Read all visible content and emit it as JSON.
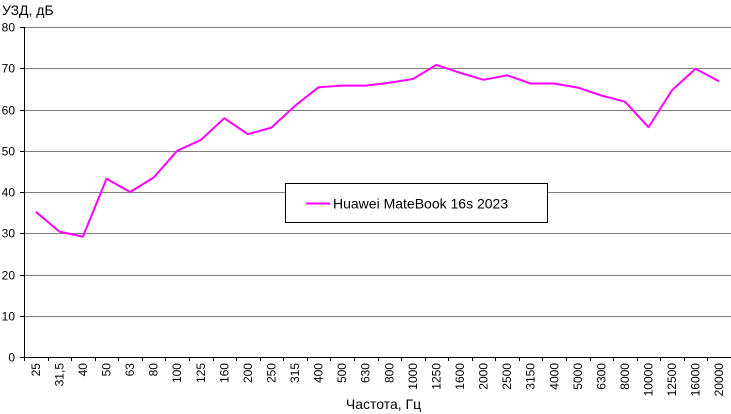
{
  "chart_data": {
    "type": "line",
    "title": "",
    "xlabel": "Частота, Гц",
    "ylabel": "УЗД, дБ",
    "categories": [
      "25",
      "31,5",
      "40",
      "50",
      "63",
      "80",
      "100",
      "125",
      "160",
      "200",
      "250",
      "315",
      "400",
      "500",
      "630",
      "800",
      "1000",
      "1250",
      "1600",
      "2000",
      "2500",
      "3150",
      "4000",
      "5000",
      "6300",
      "8000",
      "10000",
      "12500",
      "16000",
      "20000"
    ],
    "ylim": [
      0,
      80
    ],
    "yticks": [
      0,
      10,
      20,
      30,
      40,
      50,
      60,
      70,
      80
    ],
    "grid": true,
    "legend_position": "center",
    "series": [
      {
        "name": "Huawei MateBook 16s 2023",
        "color": "#ff00ff",
        "values": [
          35.2,
          30.4,
          29.2,
          43.2,
          40.0,
          43.5,
          50.0,
          52.6,
          57.9,
          54.0,
          55.6,
          60.9,
          65.4,
          65.8,
          65.8,
          66.5,
          67.4,
          70.8,
          68.9,
          67.2,
          68.3,
          66.3,
          66.3,
          65.3,
          63.4,
          61.9,
          55.7,
          64.7,
          69.9,
          66.8
        ]
      }
    ]
  }
}
